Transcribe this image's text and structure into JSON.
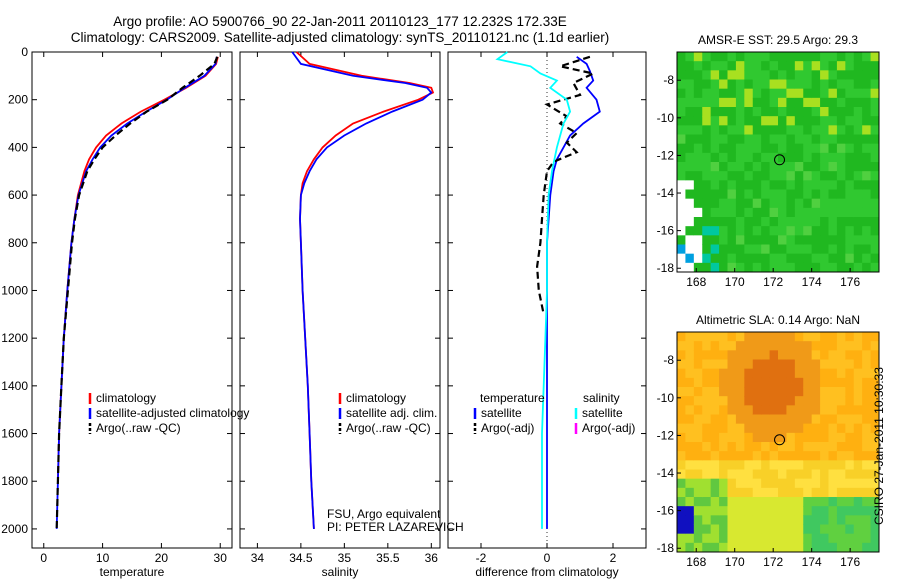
{
  "header": {
    "line1": "Argo profile: AO 5900766_90 22-Jan-2011 20110123_177 12.232S 172.33E",
    "line2": "Climatology: CARS2009. Satellite-adjusted climatology: synTS_20110121.nc (1.1d earlier)"
  },
  "stamp": "CSIRO 27-Jan-2011 10:30:33",
  "colors": {
    "clim": "#ff0000",
    "sat": "#0000ff",
    "argo": "#000000",
    "sal_sat": "#00ffff",
    "sal_argo": "#ff00ff"
  },
  "chart_data": [
    {
      "id": "temperature",
      "type": "line",
      "xlabel": "temperature",
      "ylabel": "",
      "xlim": [
        -2,
        32
      ],
      "ylim": [
        2080,
        0
      ],
      "y_reversed": true,
      "xticks": [
        0,
        10,
        20,
        30
      ],
      "yticks": [
        0,
        200,
        400,
        600,
        800,
        1000,
        1200,
        1400,
        1600,
        1800,
        2000
      ],
      "series": [
        {
          "name": "climatology",
          "style": "solid",
          "color": "#ff0000",
          "depth": [
            20,
            50,
            100,
            150,
            200,
            250,
            300,
            350,
            400,
            450,
            500,
            600,
            700,
            800,
            1000,
            1200,
            1400,
            1600,
            1800
          ],
          "values": [
            29.6,
            29.3,
            27.5,
            24.2,
            20.5,
            16.5,
            13.2,
            10.6,
            8.9,
            7.7,
            6.9,
            5.8,
            5.2,
            4.7,
            4.0,
            3.4,
            3.0,
            2.6,
            2.4
          ]
        },
        {
          "name": "satellite-adjusted climatology",
          "style": "solid",
          "color": "#0000ff",
          "depth": [
            20,
            50,
            100,
            150,
            200,
            250,
            300,
            350,
            400,
            450,
            500,
            600,
            700,
            800,
            1000,
            1200,
            1400,
            1600,
            1800,
            2000
          ],
          "values": [
            29.4,
            29.2,
            27.3,
            24.0,
            20.9,
            17.4,
            14.2,
            11.5,
            9.6,
            8.3,
            7.2,
            5.9,
            5.2,
            4.7,
            4.0,
            3.4,
            3.0,
            2.6,
            2.4,
            2.2
          ]
        },
        {
          "name": "Argo(..raw -QC)",
          "style": "dashed",
          "color": "#000000",
          "depth": [
            20,
            50,
            100,
            150,
            200,
            250,
            300,
            350,
            400,
            450,
            500,
            600,
            700,
            800,
            1000,
            1200,
            1400,
            1600,
            1800,
            2000
          ],
          "values": [
            29.5,
            29.0,
            26.5,
            23.6,
            21.0,
            17.5,
            14.7,
            12.2,
            10.0,
            8.6,
            7.4,
            6.0,
            5.3,
            4.8,
            4.1,
            3.4,
            3.0,
            2.6,
            2.4,
            2.2
          ]
        }
      ],
      "legend": {
        "placement": "lower-middle",
        "items": [
          "climatology",
          "satellite-adjusted climatology",
          "Argo(..raw -QC)"
        ]
      }
    },
    {
      "id": "salinity",
      "type": "line",
      "xlabel": "salinity",
      "ylabel": "",
      "xlim": [
        33.8,
        36.1
      ],
      "ylim": [
        2080,
        0
      ],
      "y_reversed": true,
      "xticks": [
        34,
        34.5,
        35,
        35.5,
        36
      ],
      "tick_labels": [
        "34",
        "34.5",
        "35",
        "35.5",
        "36"
      ],
      "series": [
        {
          "name": "climatology",
          "style": "solid",
          "color": "#ff0000",
          "depth": [
            0,
            50,
            100,
            130,
            150,
            170,
            200,
            250,
            300,
            350,
            400,
            450,
            500,
            550,
            600,
            700,
            800,
            1000,
            1200,
            1400,
            1600,
            1800,
            2000
          ],
          "values": [
            34.45,
            34.6,
            35.2,
            35.75,
            36.0,
            36.02,
            35.85,
            35.45,
            35.1,
            34.9,
            34.75,
            34.65,
            34.57,
            34.52,
            34.5,
            34.49,
            34.5,
            34.52,
            34.55,
            34.58,
            34.6,
            34.62,
            34.65
          ]
        },
        {
          "name": "satellite adj. clim.",
          "style": "solid",
          "color": "#0000ff",
          "depth": [
            0,
            50,
            100,
            130,
            150,
            170,
            200,
            250,
            300,
            350,
            400,
            450,
            500,
            550,
            600,
            700,
            800,
            1000,
            1200,
            1400,
            1600,
            1800,
            2000
          ],
          "values": [
            34.4,
            34.5,
            35.1,
            35.7,
            35.95,
            36.0,
            35.9,
            35.55,
            35.25,
            35.0,
            34.8,
            34.68,
            34.6,
            34.54,
            34.5,
            34.49,
            34.5,
            34.52,
            34.55,
            34.58,
            34.6,
            34.62,
            34.65
          ]
        },
        {
          "name": "Argo(..raw -QC)",
          "style": "dashed",
          "color": "#000000",
          "depth": [],
          "values": []
        }
      ],
      "legend": {
        "placement": "lower-middle",
        "items": [
          "climatology",
          "satellite adj. clim.",
          "Argo(..raw -QC)"
        ]
      },
      "annotation": {
        "line1": "FSU, Argo equivalent",
        "line2": "PI: PETER LAZAREVICH"
      }
    },
    {
      "id": "difference",
      "type": "line",
      "xlabel": "difference from climatology",
      "ylabel": "",
      "xlim": [
        -3,
        3
      ],
      "ylim": [
        2080,
        0
      ],
      "y_reversed": true,
      "xticks": [
        -2,
        0,
        2
      ],
      "series": [
        {
          "name": "temperature satellite",
          "style": "solid",
          "color": "#0000ff",
          "depth": [
            20,
            50,
            80,
            120,
            150,
            200,
            250,
            300,
            350,
            400,
            450,
            500,
            600,
            800,
            1000,
            1200,
            1500,
            2000
          ],
          "values": [
            0.9,
            1.2,
            1.3,
            1.4,
            1.2,
            1.5,
            1.6,
            1.1,
            0.7,
            0.5,
            0.3,
            0.2,
            0.1,
            0,
            0,
            0,
            0,
            0
          ]
        },
        {
          "name": "temperature Argo(-adj)",
          "style": "dashed",
          "color": "#000000",
          "depth": [
            20,
            60,
            90,
            130,
            180,
            220,
            270,
            300,
            340,
            380,
            420,
            460,
            500,
            600,
            700,
            800,
            900,
            1000,
            1100
          ],
          "values": [
            1.3,
            0.4,
            1.4,
            0.8,
            1.0,
            0,
            0.6,
            0.4,
            0.9,
            0.6,
            0.9,
            0.2,
            0,
            -0.1,
            -0.15,
            -0.2,
            -0.3,
            -0.25,
            -0.1
          ]
        },
        {
          "name": "salinity satellite",
          "style": "solid",
          "color": "#00ffff",
          "depth": [
            0,
            30,
            60,
            90,
            120,
            150,
            200,
            250,
            300,
            400,
            500,
            600,
            800,
            1000,
            1200,
            1400,
            1600,
            1800,
            2000
          ],
          "values": [
            -1.2,
            -1.5,
            -0.5,
            -0.2,
            0.3,
            0.1,
            0.6,
            0.7,
            0.5,
            0.3,
            0.15,
            0.05,
            0,
            0,
            -0.05,
            -0.1,
            -0.15,
            -0.15,
            -0.15
          ]
        },
        {
          "name": "salinity Argo(-adj)",
          "style": "dashed",
          "color": "#ff00ff",
          "depth": [],
          "values": []
        }
      ],
      "legend": {
        "placement": "lower-middle",
        "headers": [
          "temperature",
          "salinity"
        ],
        "left_items": [
          "satellite",
          "Argo(-adj)"
        ],
        "right_items": [
          "satellite",
          "Argo(-adj)"
        ]
      }
    },
    {
      "id": "sst_map",
      "type": "heatmap",
      "title": "AMSR-E SST: 29.5 Argo: 29.3",
      "xlim": [
        167,
        177.5
      ],
      "ylim": [
        -18.2,
        -6.5
      ],
      "xticks": [
        168,
        170,
        172,
        174,
        176
      ],
      "yticks": [
        -8,
        -10,
        -12,
        -14,
        -16,
        -18
      ],
      "float_position": {
        "lon": 172.33,
        "lat": -12.232
      }
    },
    {
      "id": "sla_map",
      "type": "heatmap",
      "title": "Altimetric SLA: 0.14 Argo: NaN",
      "xlim": [
        167,
        177.5
      ],
      "ylim": [
        -18.2,
        -6.5
      ],
      "xticks": [
        168,
        170,
        172,
        174,
        176
      ],
      "yticks": [
        -8,
        -10,
        -12,
        -14,
        -16,
        -18
      ],
      "float_position": {
        "lon": 172.33,
        "lat": -12.232
      }
    }
  ]
}
